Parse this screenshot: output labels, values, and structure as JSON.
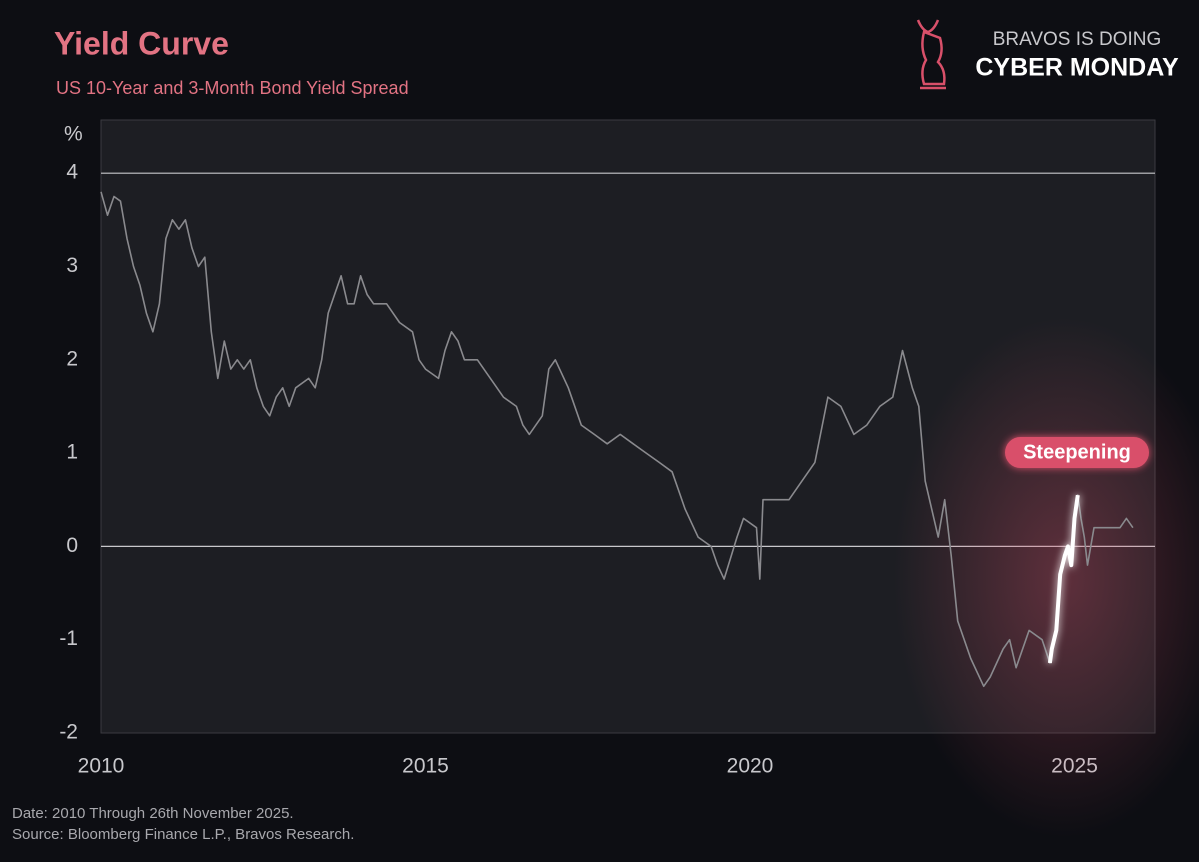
{
  "header": {
    "brand_top": "BRAVOS IS DOING",
    "brand_bottom": "CYBER MONDAY"
  },
  "chart_data": {
    "type": "line",
    "title": "Yield Curve",
    "subtitle": "US 10-Year and 3-Month Bond Yield Spread",
    "y_label": "%",
    "annotation": "Steepening",
    "notes": [
      "Date: 2010 Through 26th November 2025.",
      "Source: Bloomberg Finance L.P., Bravos Research."
    ],
    "xlim": [
      2010,
      2026.24
    ],
    "xticks": [
      2010,
      2015,
      2020,
      2025
    ],
    "ylim": [
      -2,
      4.57
    ],
    "yticks": [
      -2,
      -1,
      0,
      1,
      2,
      3,
      4
    ],
    "hlines": [
      0,
      4
    ],
    "highlight_xlim": [
      2024.62,
      2025.05
    ],
    "highlight_color": "#ffffff",
    "series": [
      {
        "name": "Spread",
        "color": "#8a8a8e",
        "x": [
          2010.0,
          2010.1,
          2010.2,
          2010.3,
          2010.4,
          2010.5,
          2010.6,
          2010.7,
          2010.8,
          2010.9,
          2011.0,
          2011.1,
          2011.2,
          2011.3,
          2011.4,
          2011.5,
          2011.6,
          2011.7,
          2011.8,
          2011.9,
          2012.0,
          2012.1,
          2012.2,
          2012.3,
          2012.4,
          2012.5,
          2012.6,
          2012.7,
          2012.8,
          2012.9,
          2013.0,
          2013.2,
          2013.3,
          2013.4,
          2013.5,
          2013.6,
          2013.7,
          2013.8,
          2013.9,
          2014.0,
          2014.1,
          2014.2,
          2014.4,
          2014.6,
          2014.8,
          2014.9,
          2015.0,
          2015.2,
          2015.3,
          2015.4,
          2015.5,
          2015.6,
          2015.8,
          2016.0,
          2016.2,
          2016.4,
          2016.5,
          2016.6,
          2016.8,
          2016.9,
          2017.0,
          2017.2,
          2017.4,
          2017.6,
          2017.8,
          2018.0,
          2018.2,
          2018.4,
          2018.6,
          2018.8,
          2018.9,
          2019.0,
          2019.2,
          2019.4,
          2019.5,
          2019.6,
          2019.8,
          2019.9,
          2020.1,
          2020.15,
          2020.2,
          2020.4,
          2020.6,
          2020.8,
          2021.0,
          2021.2,
          2021.4,
          2021.6,
          2021.8,
          2022.0,
          2022.2,
          2022.35,
          2022.5,
          2022.6,
          2022.7,
          2022.9,
          2023.0,
          2023.1,
          2023.2,
          2023.4,
          2023.6,
          2023.7,
          2023.9,
          2024.0,
          2024.1,
          2024.3,
          2024.5,
          2024.62,
          2024.65,
          2024.72,
          2024.78,
          2024.85,
          2024.9,
          2024.95,
          2025.0,
          2025.05,
          2025.1,
          2025.15,
          2025.2,
          2025.3,
          2025.5,
          2025.7,
          2025.8,
          2025.9
        ],
        "values": [
          3.8,
          3.55,
          3.75,
          3.7,
          3.3,
          3.0,
          2.8,
          2.5,
          2.3,
          2.6,
          3.3,
          3.5,
          3.4,
          3.5,
          3.2,
          3.0,
          3.1,
          2.3,
          1.8,
          2.2,
          1.9,
          2.0,
          1.9,
          2.0,
          1.7,
          1.5,
          1.4,
          1.6,
          1.7,
          1.5,
          1.7,
          1.8,
          1.7,
          2.0,
          2.5,
          2.7,
          2.9,
          2.6,
          2.6,
          2.9,
          2.7,
          2.6,
          2.6,
          2.4,
          2.3,
          2.0,
          1.9,
          1.8,
          2.1,
          2.3,
          2.2,
          2.0,
          2.0,
          1.8,
          1.6,
          1.5,
          1.3,
          1.2,
          1.4,
          1.9,
          2.0,
          1.7,
          1.3,
          1.2,
          1.1,
          1.2,
          1.1,
          1.0,
          0.9,
          0.8,
          0.6,
          0.4,
          0.1,
          0.0,
          -0.2,
          -0.35,
          0.1,
          0.3,
          0.2,
          -0.35,
          0.5,
          0.5,
          0.5,
          0.7,
          0.9,
          1.6,
          1.5,
          1.2,
          1.3,
          1.5,
          1.6,
          2.1,
          1.7,
          1.5,
          0.7,
          0.1,
          0.5,
          -0.1,
          -0.8,
          -1.2,
          -1.5,
          -1.4,
          -1.1,
          -1.0,
          -1.3,
          -0.9,
          -1.0,
          -1.25,
          -1.1,
          -0.9,
          -0.3,
          -0.1,
          0.0,
          -0.2,
          0.3,
          0.55,
          0.3,
          0.1,
          -0.2,
          0.2,
          0.2,
          0.2,
          0.3,
          0.2
        ]
      }
    ]
  }
}
